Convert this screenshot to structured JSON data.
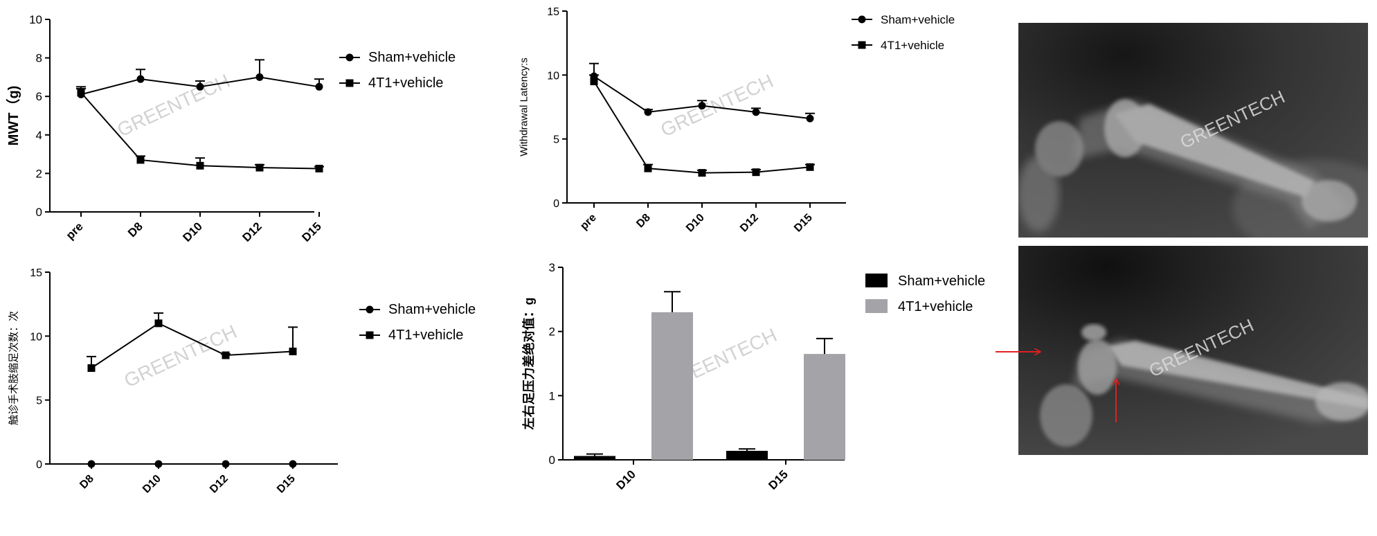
{
  "watermark": "GREENTECH",
  "legend": {
    "sham": "Sham+vehicle",
    "t41": "4T1+vehicle"
  },
  "colors": {
    "sham_bar": "#000000",
    "t41_bar": "#a3a3a8",
    "arrow": "#e02020",
    "watermark": "#d2d2d2"
  },
  "chart_data": [
    {
      "type": "line",
      "ylabel": "MWT（g)",
      "ylim": [
        0,
        10
      ],
      "yticks": [
        "0",
        "2",
        "4",
        "6",
        "8",
        "10"
      ],
      "categories": [
        "pre",
        "D8",
        "D10",
        "D12",
        "D15"
      ],
      "legend_position": "right",
      "series": [
        {
          "name": "Sham+vehicle",
          "marker": "circle",
          "values": [
            6.1,
            6.9,
            6.5,
            7.0,
            6.5
          ],
          "errors": [
            0.3,
            0.5,
            0.3,
            0.9,
            0.4
          ]
        },
        {
          "name": "4T1+vehicle",
          "marker": "square",
          "values": [
            6.2,
            2.7,
            2.4,
            2.3,
            2.25
          ],
          "errors": [
            0.3,
            0.2,
            0.4,
            0.15,
            0.1
          ]
        }
      ]
    },
    {
      "type": "line",
      "ylabel": "Withdrawal Latency:s",
      "ylim": [
        0,
        15
      ],
      "yticks": [
        "0",
        "5",
        "10",
        "15"
      ],
      "categories": [
        "pre",
        "D8",
        "D10",
        "D12",
        "D15"
      ],
      "legend_position": "right",
      "series": [
        {
          "name": "Sham+vehicle",
          "marker": "circle",
          "values": [
            9.9,
            7.1,
            7.6,
            7.1,
            6.6
          ],
          "errors": [
            1.0,
            0.2,
            0.4,
            0.3,
            0.4
          ]
        },
        {
          "name": "4T1+vehicle",
          "marker": "square",
          "values": [
            9.5,
            2.7,
            2.35,
            2.4,
            2.8
          ],
          "errors": [
            0.5,
            0.3,
            0.2,
            0.2,
            0.2
          ]
        }
      ]
    },
    {
      "type": "line",
      "ylabel": "触诊手术肢缩足次数：次",
      "ylim": [
        0,
        15
      ],
      "yticks": [
        "0",
        "5",
        "10",
        "15"
      ],
      "categories": [
        "D8",
        "D10",
        "D12",
        "D15"
      ],
      "legend_position": "right",
      "series": [
        {
          "name": "Sham+vehicle",
          "marker": "circle",
          "values": [
            0,
            0,
            0,
            0
          ],
          "errors": [
            0,
            0,
            0,
            0
          ]
        },
        {
          "name": "4T1+vehicle",
          "marker": "square",
          "values": [
            7.5,
            11.0,
            8.5,
            8.8
          ],
          "errors": [
            0.9,
            0.8,
            0.1,
            1.9
          ]
        }
      ]
    },
    {
      "type": "bar",
      "ylabel": "左右足压力差绝对值：g",
      "ylim": [
        0,
        3
      ],
      "yticks": [
        "0",
        "1",
        "2",
        "3"
      ],
      "categories": [
        "D10",
        "D15"
      ],
      "legend_position": "right",
      "series": [
        {
          "name": "Sham+vehicle",
          "values": [
            0.06,
            0.14
          ],
          "errors": [
            0.03,
            0.03
          ]
        },
        {
          "name": "4T1+vehicle",
          "values": [
            2.3,
            1.65
          ],
          "errors": [
            0.32,
            0.24
          ]
        }
      ]
    }
  ]
}
